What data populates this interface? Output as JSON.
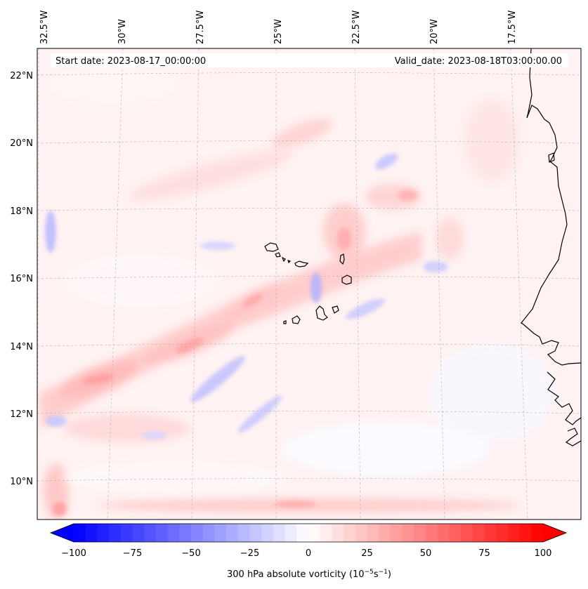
{
  "header": {
    "start_date": "Start date: 2023-08-17_00:00:00",
    "valid_date": "Valid_date: 2023-08-18T03:00:00.00"
  },
  "longitude_labels": [
    "32.5°W",
    "30°W",
    "27.5°W",
    "25°W",
    "22.5°W",
    "20°W",
    "17.5°W"
  ],
  "latitude_labels": [
    "22°N",
    "20°N",
    "18°N",
    "16°N",
    "14°N",
    "12°N",
    "10°N"
  ],
  "colorbar": {
    "ticks": [
      "−100",
      "−75",
      "−50",
      "−25",
      "0",
      "25",
      "50",
      "75",
      "100"
    ],
    "label_prefix": "300 hPa absolute vorticity (10",
    "label_exp1": "−5",
    "label_mid": "s",
    "label_exp2": "−1",
    "label_suffix": ")",
    "min": -100,
    "max": 100,
    "neg_color": "#0000ff",
    "pos_color": "#ff0000"
  },
  "colors": {
    "coastline": "#000000",
    "gridline": "#b0b0b0"
  }
}
